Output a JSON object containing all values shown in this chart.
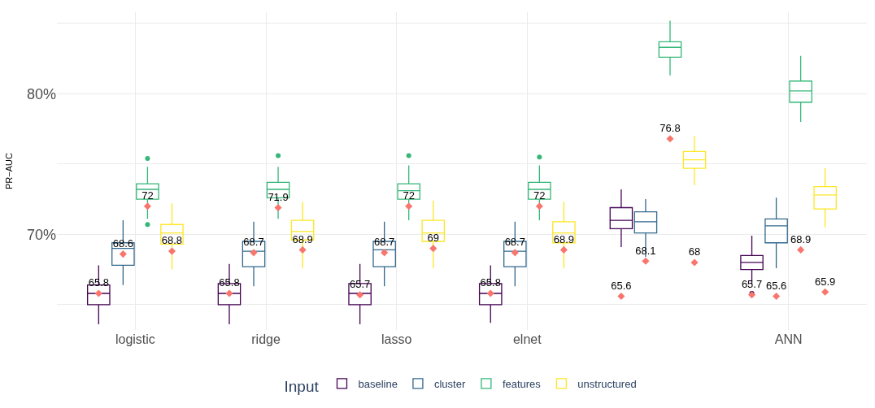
{
  "chart_data": {
    "type": "box",
    "ylabel": "PR−AUC",
    "legend_title": "Input",
    "categories": [
      "logistic",
      "ridge",
      "lasso",
      "elnet",
      null,
      "ANN"
    ],
    "ylim": [
      63.2,
      85.8
    ],
    "yticks": [
      {
        "value": 65,
        "label": null
      },
      {
        "value": 70,
        "label": "70%"
      },
      {
        "value": 75,
        "label": null
      },
      {
        "value": 80,
        "label": "80%"
      },
      {
        "value": 85,
        "label": null
      }
    ],
    "grid": true,
    "legend": "bottom",
    "data_labels": true,
    "series": [
      {
        "name": "baseline",
        "color": "#440154",
        "boxes": [
          {
            "low": 63.6,
            "q1": 65.0,
            "median": 65.8,
            "q3": 66.4,
            "high": 67.8
          },
          {
            "low": 63.6,
            "q1": 65.0,
            "median": 65.8,
            "q3": 66.5,
            "high": 67.9
          },
          {
            "low": 63.6,
            "q1": 65.0,
            "median": 65.8,
            "q3": 66.5,
            "high": 67.9
          },
          {
            "low": 63.7,
            "q1": 65.0,
            "median": 65.8,
            "q3": 66.5,
            "high": 67.8
          },
          {
            "low": 69.1,
            "q1": 70.4,
            "median": 71.0,
            "q3": 71.9,
            "high": 73.2
          },
          {
            "low": 66.5,
            "q1": 67.5,
            "median": 68.0,
            "q3": 68.5,
            "high": 69.9,
            "outliers": [
              65.8
            ]
          }
        ]
      },
      {
        "name": "cluster",
        "color": "#31688e",
        "boxes": [
          {
            "low": 66.4,
            "q1": 67.8,
            "median": 69.0,
            "q3": 69.4,
            "high": 71.0
          },
          {
            "low": 66.3,
            "q1": 67.7,
            "median": 68.8,
            "q3": 69.5,
            "high": 70.9
          },
          {
            "low": 66.3,
            "q1": 67.7,
            "median": 68.9,
            "q3": 69.5,
            "high": 70.9
          },
          {
            "low": 66.3,
            "q1": 67.7,
            "median": 68.8,
            "q3": 69.5,
            "high": 70.9
          },
          {
            "low": 68.4,
            "q1": 70.1,
            "median": 70.9,
            "q3": 71.6,
            "high": 72.5
          },
          {
            "low": 67.6,
            "q1": 69.4,
            "median": 70.6,
            "q3": 71.1,
            "high": 72.6
          }
        ]
      },
      {
        "name": "features",
        "color": "#35b779",
        "boxes": [
          {
            "low": 71.1,
            "q1": 72.5,
            "median": 73.2,
            "q3": 73.6,
            "high": 74.8,
            "outliers": [
              75.4,
              70.7
            ]
          },
          {
            "low": 71.1,
            "q1": 72.6,
            "median": 73.2,
            "q3": 73.7,
            "high": 74.8,
            "outliers": [
              75.6
            ]
          },
          {
            "low": 71.0,
            "q1": 72.5,
            "median": 73.1,
            "q3": 73.6,
            "high": 74.9,
            "outliers": [
              75.6
            ]
          },
          {
            "low": 71.0,
            "q1": 72.5,
            "median": 73.2,
            "q3": 73.7,
            "high": 74.9,
            "outliers": [
              75.5
            ]
          },
          {
            "low": 81.3,
            "q1": 82.6,
            "median": 83.3,
            "q3": 83.7,
            "high": 85.2
          },
          {
            "low": 78.0,
            "q1": 79.4,
            "median": 80.2,
            "q3": 80.9,
            "high": 82.7
          }
        ]
      },
      {
        "name": "unstructured",
        "color": "#fde725",
        "boxes": [
          {
            "low": 67.5,
            "q1": 69.3,
            "median": 70.1,
            "q3": 70.7,
            "high": 72.2
          },
          {
            "low": 67.6,
            "q1": 69.6,
            "median": 70.2,
            "q3": 71.0,
            "high": 72.3
          },
          {
            "low": 67.6,
            "q1": 69.5,
            "median": 70.1,
            "q3": 71.0,
            "high": 72.4
          },
          {
            "low": 67.6,
            "q1": 69.4,
            "median": 70.1,
            "q3": 70.9,
            "high": 72.3
          },
          {
            "low": 73.5,
            "q1": 74.7,
            "median": 75.3,
            "q3": 75.9,
            "high": 77.0
          },
          {
            "low": 70.5,
            "q1": 71.8,
            "median": 72.8,
            "q3": 73.4,
            "high": 74.7
          }
        ]
      },
      {
        "type": "scatter",
        "marker": "diamond",
        "color": "#f8766d",
        "values": [
          65.8,
          65.8,
          65.7,
          65.8,
          65.6,
          65.7
        ]
      },
      {
        "type": "scatter",
        "marker": "diamond",
        "color": "#f8766d",
        "values": [
          68.6,
          68.7,
          68.7,
          68.7,
          68.1,
          65.6
        ]
      },
      {
        "type": "scatter",
        "marker": "diamond",
        "color": "#f8766d",
        "values": [
          72,
          71.9,
          72,
          72,
          76.8,
          68.9
        ]
      },
      {
        "type": "scatter",
        "marker": "diamond",
        "color": "#f8766d",
        "values": [
          68.8,
          68.9,
          69,
          68.9,
          68,
          65.9
        ]
      }
    ]
  }
}
